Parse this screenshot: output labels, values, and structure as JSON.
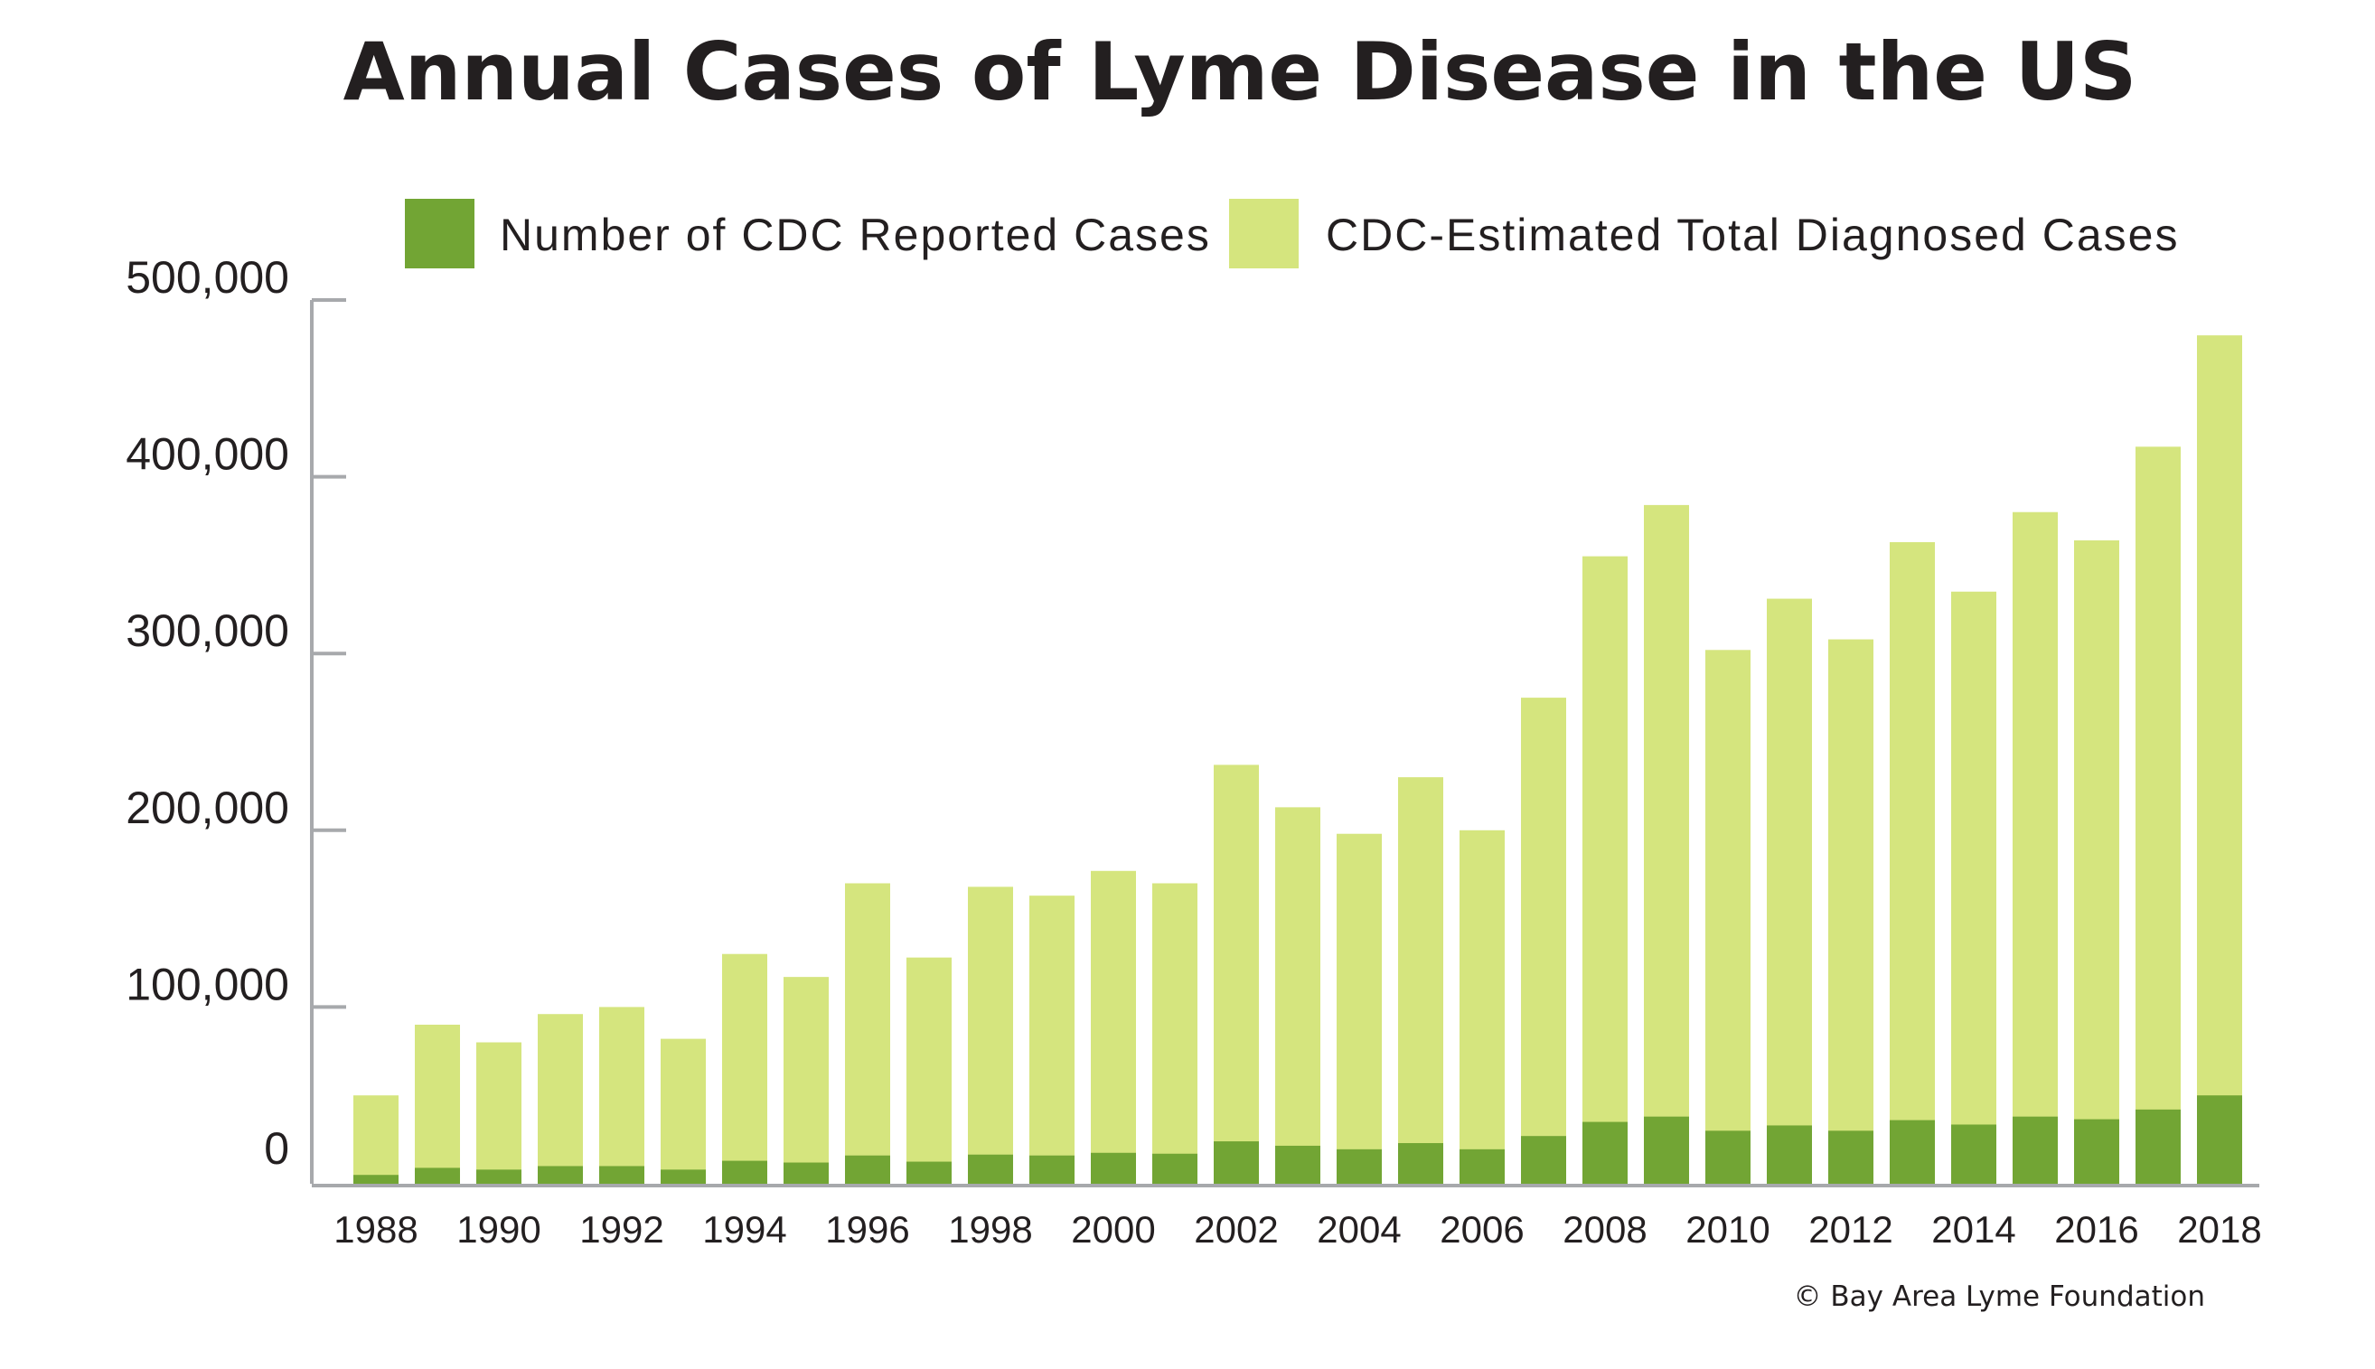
{
  "chart_data": {
    "type": "bar",
    "stacked": true,
    "title": "Annual Cases of Lyme Disease in the US",
    "xlabel": "",
    "ylabel": "",
    "ylim": [
      0,
      500000
    ],
    "yticks": [
      0,
      100000,
      200000,
      300000,
      400000,
      500000
    ],
    "ytick_labels": [
      "0",
      "100,000",
      "200,000",
      "300,000",
      "400,000",
      "500,000"
    ],
    "grid": false,
    "legend_position": "top",
    "categories": [
      "1988",
      "1989",
      "1990",
      "1991",
      "1992",
      "1993",
      "1994",
      "1995",
      "1996",
      "1997",
      "1998",
      "1999",
      "2000",
      "2001",
      "2002",
      "2003",
      "2004",
      "2005",
      "2006",
      "2007",
      "2008",
      "2009",
      "2010",
      "2011",
      "2012",
      "2013",
      "2014",
      "2015",
      "2016",
      "2017",
      "2018"
    ],
    "xtick_labels": [
      "1988",
      "1990",
      "1992",
      "1994",
      "1996",
      "1998",
      "2000",
      "2002",
      "2004",
      "2006",
      "2008",
      "2010",
      "2012",
      "2014",
      "2016",
      "2018"
    ],
    "series": [
      {
        "name": "Number of CDC Reported Cases",
        "color": "#72a534",
        "values": [
          5000,
          9000,
          8000,
          10000,
          10000,
          8000,
          13000,
          12000,
          16000,
          12500,
          16500,
          16000,
          17500,
          17000,
          24000,
          21500,
          19500,
          23000,
          19500,
          27000,
          35000,
          38000,
          30000,
          33000,
          30000,
          36000,
          33500,
          38000,
          36500,
          42000,
          50000
        ]
      },
      {
        "name": "CDC-Estimated Total Diagnosed Cases",
        "color": "#d5e57e",
        "values": [
          50000,
          90000,
          80000,
          96000,
          100000,
          82000,
          130000,
          117000,
          170000,
          128000,
          168000,
          163000,
          177000,
          170000,
          237000,
          213000,
          198000,
          230000,
          200000,
          275000,
          355000,
          384000,
          302000,
          331000,
          308000,
          363000,
          335000,
          380000,
          364000,
          417000,
          480000
        ]
      }
    ],
    "credit": "© Bay Area Lyme Foundation"
  }
}
